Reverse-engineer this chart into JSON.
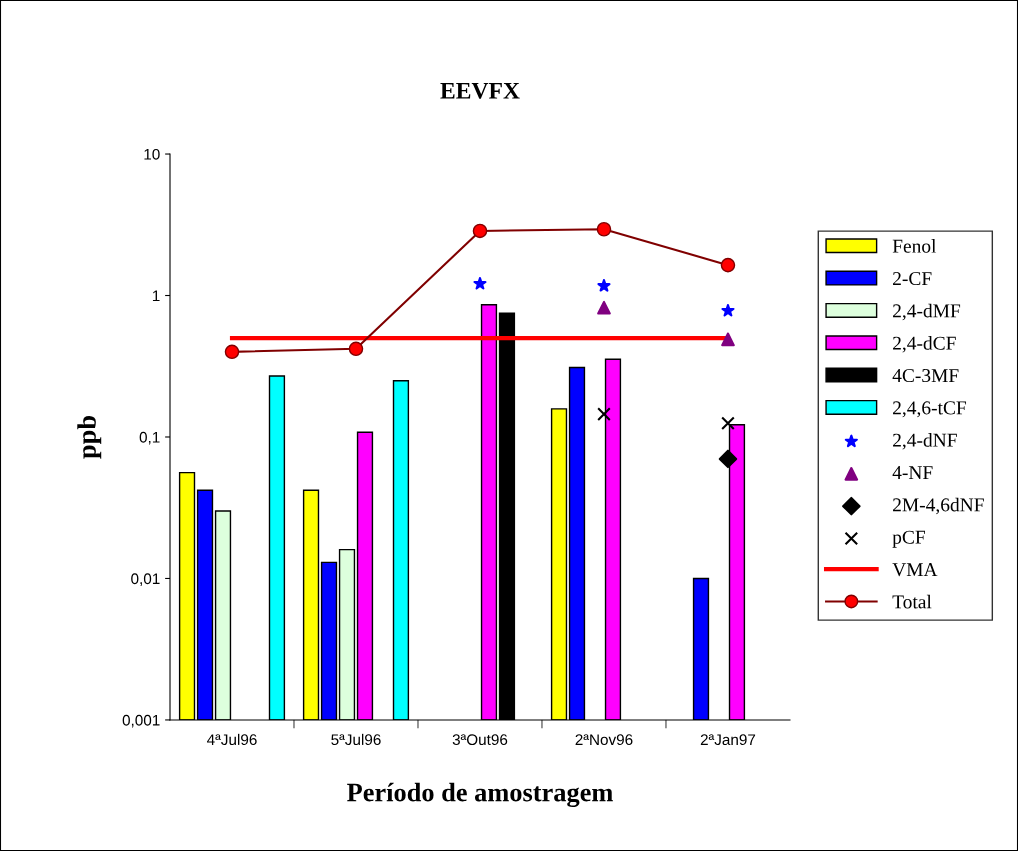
{
  "chart_data": {
    "type": "bar",
    "title": "EEVFX",
    "xlabel": "Período de amostragem",
    "ylabel": "ppb",
    "categories": [
      "4ªJul96",
      "5ªJul96",
      "3ªOut96",
      "2ªNov96",
      "2ªJan97"
    ],
    "log": "y",
    "ylim": [
      0.001,
      10
    ],
    "yticks": [
      {
        "value": 0.001,
        "label": "0,001"
      },
      {
        "value": 0.01,
        "label": "0,01"
      },
      {
        "value": 0.1,
        "label": "0,1"
      },
      {
        "value": 1,
        "label": "1"
      },
      {
        "value": 10,
        "label": "10"
      }
    ],
    "grid": false,
    "legend": "right",
    "series": [
      {
        "name": "Fenol",
        "color": "#ffff00",
        "values": [
          0.056,
          0.042,
          null,
          0.158,
          null
        ]
      },
      {
        "name": "2-CF",
        "color": "#0000ff",
        "values": [
          0.042,
          0.013,
          null,
          0.31,
          0.01
        ]
      },
      {
        "name": "2,4-dMF",
        "color": "#ddffdd",
        "values": [
          0.03,
          0.016,
          null,
          null,
          null
        ]
      },
      {
        "name": "2,4-dCF",
        "color": "#ff00ff",
        "values": [
          null,
          0.108,
          0.86,
          0.354,
          0.122
        ]
      },
      {
        "name": "4C-3MF",
        "color": "#000000",
        "values": [
          null,
          null,
          0.75,
          null,
          null
        ]
      },
      {
        "name": "2,4,6-tCF",
        "color": "#00ffff",
        "values": [
          0.27,
          0.25,
          null,
          null,
          null
        ]
      },
      {
        "name": "2,4-dNF",
        "type": "scatter",
        "marker": "star",
        "color": "#0000ff",
        "values": [
          null,
          null,
          1.21,
          1.17,
          0.78
        ]
      },
      {
        "name": "4-NF",
        "type": "scatter",
        "marker": "triangle",
        "color": "#800080",
        "values": [
          null,
          null,
          null,
          0.82,
          0.49
        ]
      },
      {
        "name": "2M-4,6dNF",
        "type": "scatter",
        "marker": "diamond",
        "color": "#000000",
        "values": [
          null,
          null,
          null,
          null,
          0.07
        ]
      },
      {
        "name": "pCF",
        "type": "scatter",
        "marker": "cross",
        "color": "#000000",
        "values": [
          null,
          null,
          null,
          0.145,
          0.125
        ]
      },
      {
        "name": "VMA",
        "type": "line",
        "marker": "none",
        "color": "#ff0000",
        "values": [
          0.5,
          0.5,
          0.5,
          0.5,
          0.5
        ]
      },
      {
        "name": "Total",
        "type": "line",
        "marker": "circle",
        "color": "#800000",
        "colors": [
          "#ff0000",
          "#ff0000",
          "#ff0000",
          "#ff0000",
          "#ff0000"
        ],
        "values": [
          0.4,
          0.42,
          2.86,
          2.94,
          1.64
        ]
      }
    ]
  }
}
